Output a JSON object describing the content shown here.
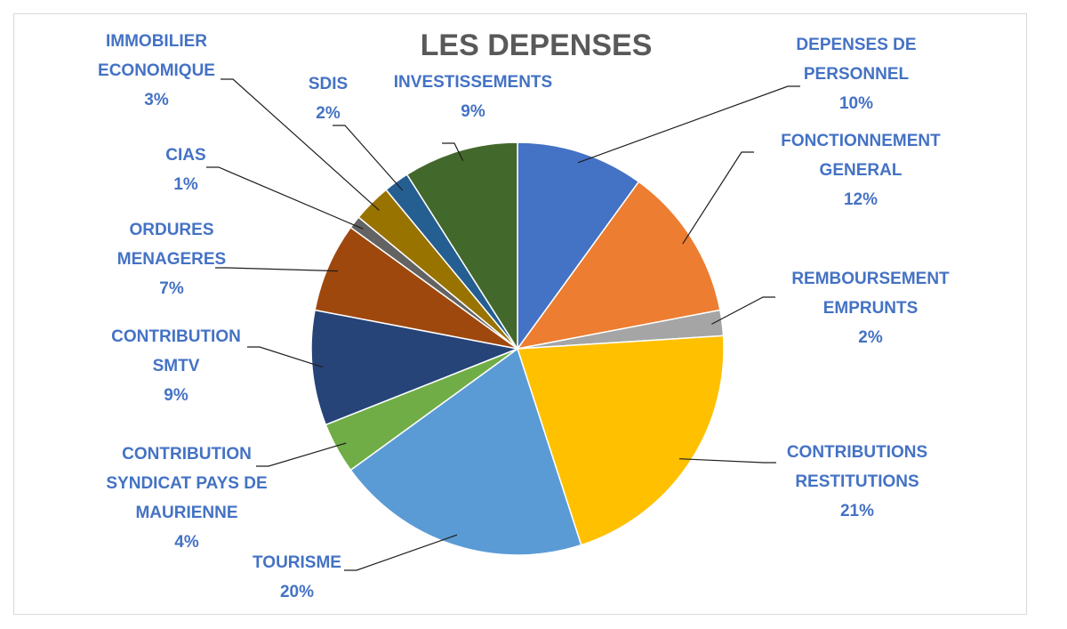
{
  "chart_data": {
    "type": "pie",
    "title": "LES DEPENSES",
    "slices": [
      {
        "name": "DEPENSES DE PERSONNEL",
        "lines": [
          "DEPENSES DE",
          "PERSONNEL"
        ],
        "value": 10,
        "label": "10%",
        "color": "#4472c4"
      },
      {
        "name": "FONCTIONNEMENT GENERAL",
        "lines": [
          "FONCTIONNEMENT",
          "GENERAL"
        ],
        "value": 12,
        "label": "12%",
        "color": "#ed7d31"
      },
      {
        "name": "REMBOURSEMENT EMPRUNTS",
        "lines": [
          "REMBOURSEMENT",
          "EMPRUNTS"
        ],
        "value": 2,
        "label": "2%",
        "color": "#a5a5a5"
      },
      {
        "name": "CONTRIBUTIONS RESTITUTIONS",
        "lines": [
          "CONTRIBUTIONS",
          "RESTITUTIONS"
        ],
        "value": 21,
        "label": "21%",
        "color": "#ffc000"
      },
      {
        "name": "TOURISME",
        "lines": [
          "TOURISME"
        ],
        "value": 20,
        "label": "20%",
        "color": "#5b9bd5"
      },
      {
        "name": "CONTRIBUTION SYNDICAT PAYS DE MAURIENNE",
        "lines": [
          "CONTRIBUTION",
          "SYNDICAT PAYS DE",
          "MAURIENNE"
        ],
        "value": 4,
        "label": "4%",
        "color": "#70ad47"
      },
      {
        "name": "CONTRIBUTION SMTV",
        "lines": [
          "CONTRIBUTION",
          "SMTV"
        ],
        "value": 9,
        "label": "9%",
        "color": "#264478"
      },
      {
        "name": "ORDURES MENAGERES",
        "lines": [
          "ORDURES",
          "MENAGERES"
        ],
        "value": 7,
        "label": "7%",
        "color": "#9e480e"
      },
      {
        "name": "CIAS",
        "lines": [
          "CIAS"
        ],
        "value": 1,
        "label": "1%",
        "color": "#636363"
      },
      {
        "name": "IMMOBILIER ECONOMIQUE",
        "lines": [
          "IMMOBILIER",
          "ECONOMIQUE"
        ],
        "value": 3,
        "label": "3%",
        "color": "#997300"
      },
      {
        "name": "SDIS",
        "lines": [
          "SDIS"
        ],
        "value": 2,
        "label": "2%",
        "color": "#255e91"
      },
      {
        "name": "INVESTISSEMENTS",
        "lines": [
          "INVESTISSEMENTS"
        ],
        "value": 9,
        "label": "9%",
        "color": "#43682b"
      }
    ],
    "start_position": "12 o'clock",
    "direction": "clockwise",
    "label_color": "#4472c4",
    "title_color": "#595959",
    "leader_line_color": "#1f1f1f",
    "legend": "none"
  }
}
